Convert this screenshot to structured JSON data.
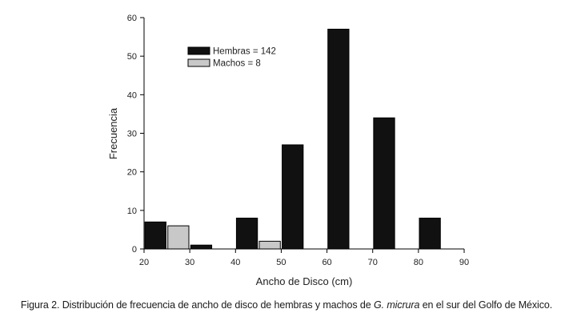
{
  "chart_data": {
    "type": "bar",
    "xlabel": "Ancho de Disco (cm)",
    "ylabel": "Frecuencia",
    "xlim": [
      20,
      90
    ],
    "ylim": [
      0,
      60
    ],
    "x_ticks": [
      20,
      30,
      40,
      50,
      60,
      70,
      80,
      90
    ],
    "y_ticks": [
      0,
      10,
      20,
      30,
      40,
      50,
      60
    ],
    "bin_width": 10,
    "bin_starts": [
      20,
      30,
      40,
      50,
      60,
      70,
      80
    ],
    "grid": false,
    "legend_position": "top-left",
    "series": [
      {
        "name": "Hembras = 142",
        "color": "#111111",
        "values": [
          7,
          1,
          8,
          27,
          57,
          34,
          8
        ]
      },
      {
        "name": "Machos = 8",
        "color": "#c8c8c8",
        "values": [
          6,
          0,
          2,
          0,
          0,
          0,
          0
        ]
      }
    ]
  },
  "caption": {
    "prefix": "Figura 2. Distribución de frecuencia de ancho de disco de hembras y machos de ",
    "species": "G. micrura",
    "suffix": " en el sur del Golfo de México."
  }
}
